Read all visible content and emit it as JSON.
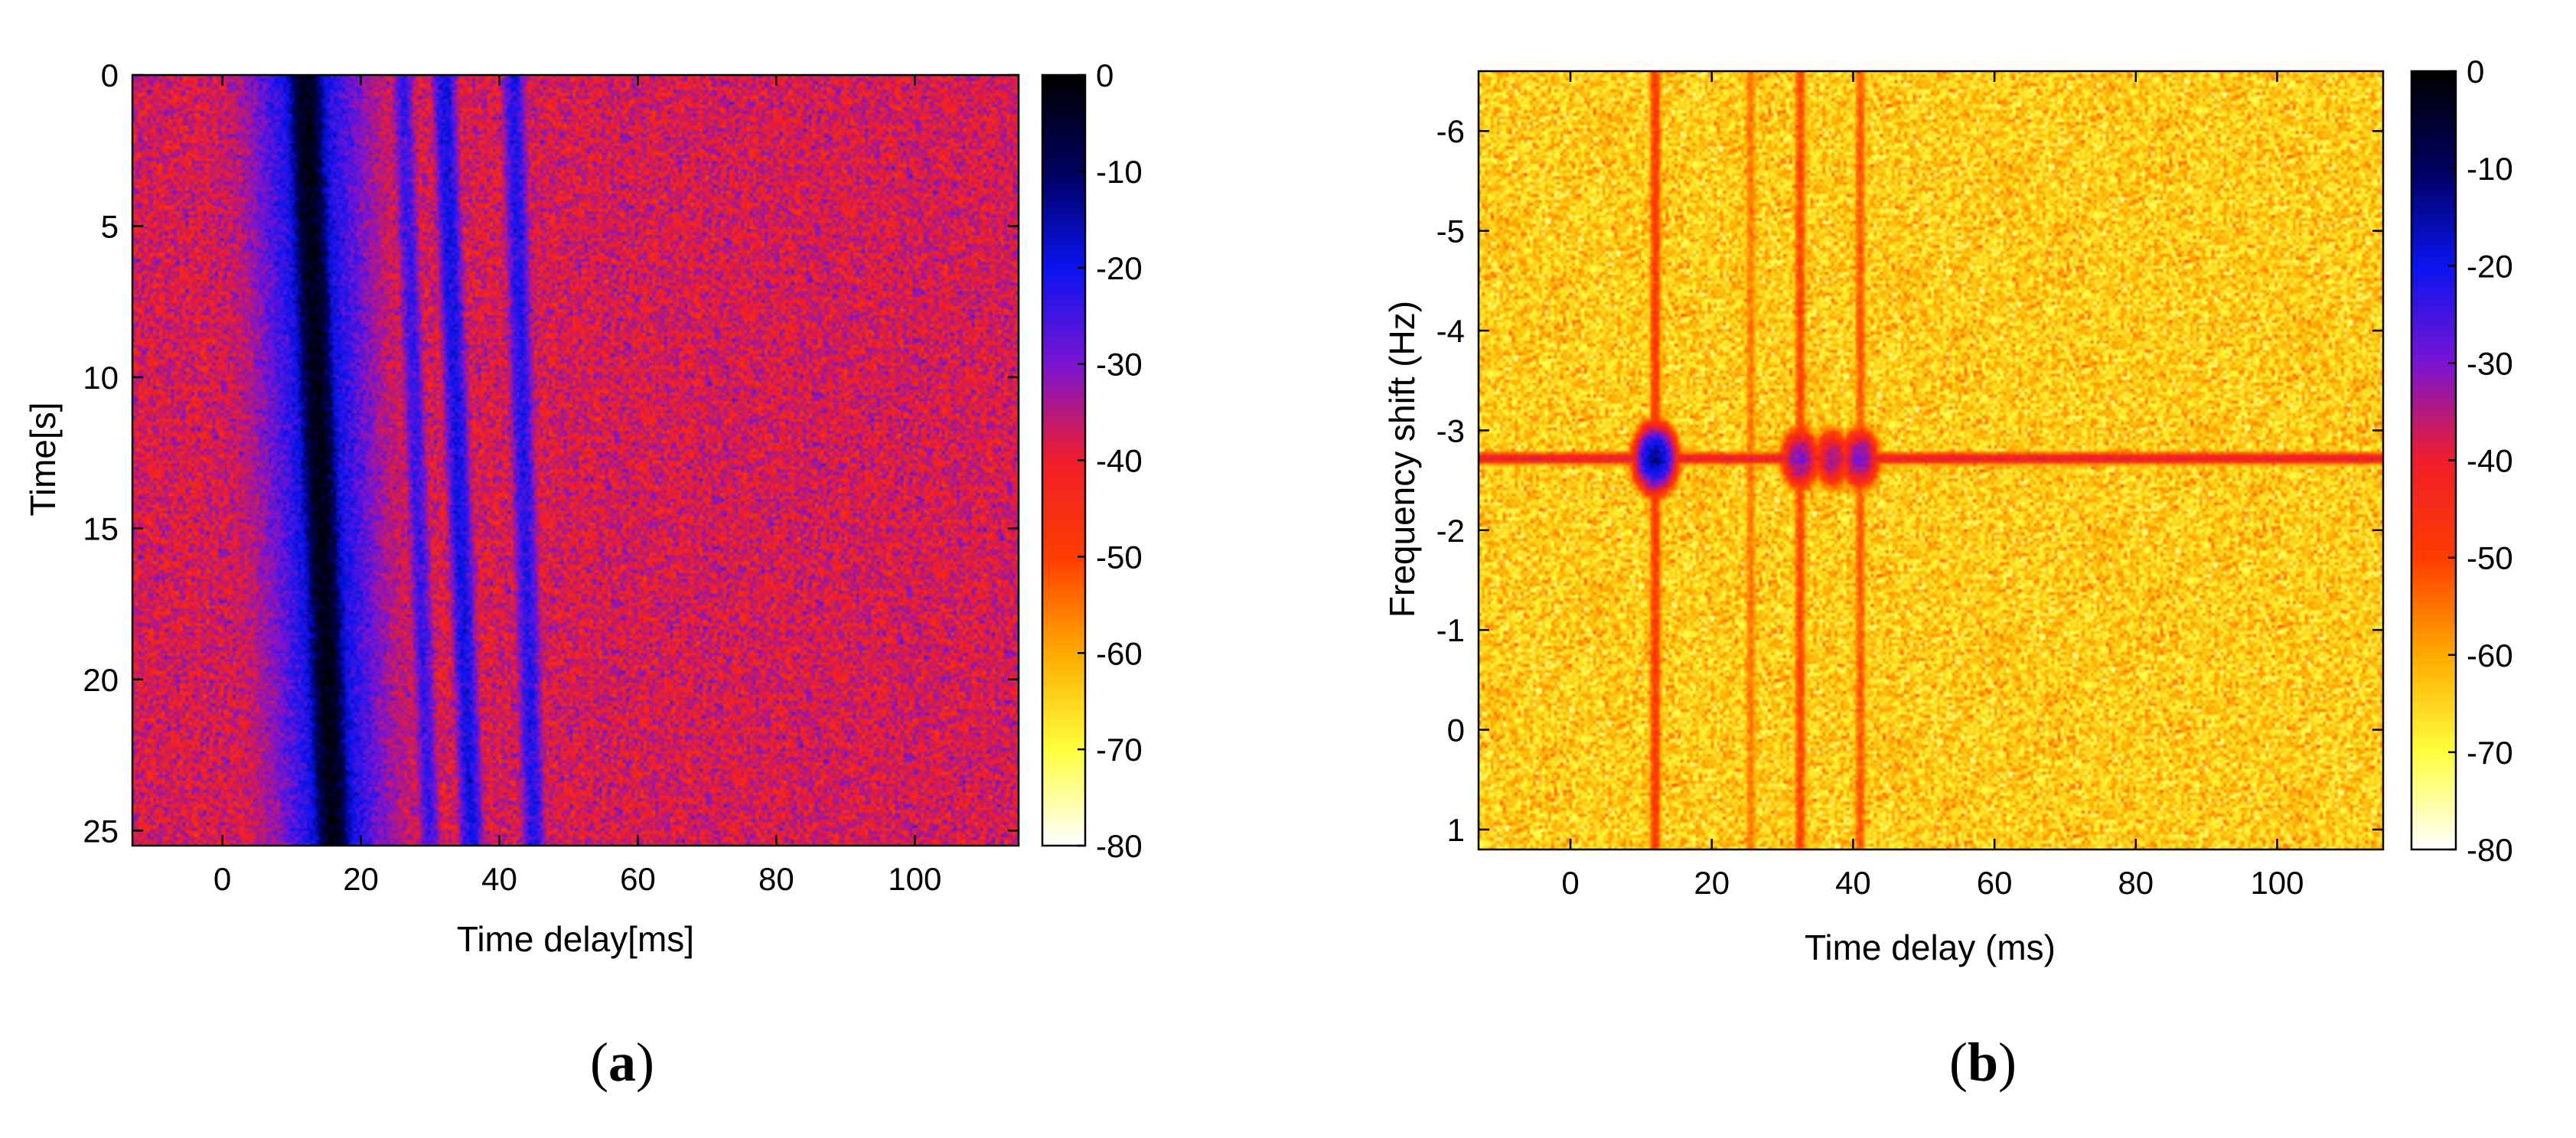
{
  "panels": [
    {
      "id": "a",
      "caption_open": "(",
      "caption_letter": "a",
      "caption_close": ")"
    },
    {
      "id": "b",
      "caption_open": "(",
      "caption_letter": "b",
      "caption_close": ")"
    }
  ],
  "chart_data": [
    {
      "type": "heatmap",
      "title": "",
      "xlabel": "Time delay[ms]",
      "ylabel": "Time[s]",
      "xlim": [
        -13,
        115
      ],
      "ylim": [
        0,
        25.5
      ],
      "y_reversed": true,
      "x_ticks": [
        "0",
        "20",
        "40",
        "60",
        "80",
        "100"
      ],
      "y_ticks": [
        "0",
        "5",
        "10",
        "15",
        "20",
        "25"
      ],
      "colorbar": {
        "range": [
          -80,
          0
        ],
        "ticks": [
          "0",
          "-10",
          "-20",
          "-30",
          "-40",
          "-50",
          "-60",
          "-70",
          "-80"
        ],
        "colormap": [
          "#ffffff",
          "#ffff3c",
          "#ffaa00",
          "#ff3c00",
          "#f01e2a",
          "#7a14d2",
          "#0a14f0",
          "#000060",
          "#000000"
        ]
      },
      "background_level_db": -38,
      "features": [
        {
          "kind": "direct-path-streak",
          "x_start": 12,
          "x_end": 16,
          "level_db": -2,
          "width_ms": 1.8
        },
        {
          "kind": "multipath-streak",
          "x_start": 26,
          "x_end": 30,
          "level_db": -24,
          "width_ms": 1.2
        },
        {
          "kind": "multipath-streak",
          "x_start": 32,
          "x_end": 36,
          "level_db": -20,
          "width_ms": 1.3
        },
        {
          "kind": "multipath-streak",
          "x_start": 42,
          "x_end": 45,
          "level_db": -22,
          "width_ms": 1.3
        }
      ]
    },
    {
      "type": "heatmap",
      "title": "",
      "xlabel": "Time delay (ms)",
      "ylabel": "Frequency shift (Hz)",
      "xlim": [
        -13,
        115
      ],
      "ylim": [
        -6.6,
        1.2
      ],
      "y_reversed": true,
      "x_ticks": [
        "0",
        "20",
        "40",
        "60",
        "80",
        "100"
      ],
      "y_ticks": [
        "-6",
        "-5",
        "-4",
        "-3",
        "-2",
        "-1",
        "0",
        "1"
      ],
      "colorbar": {
        "range": [
          -80,
          0
        ],
        "ticks": [
          "0",
          "-10",
          "-20",
          "-30",
          "-40",
          "-50",
          "-60",
          "-70",
          "-80"
        ],
        "colormap": [
          "#ffffff",
          "#ffff3c",
          "#ffaa00",
          "#ff3c00",
          "#f01e2a",
          "#7a14d2",
          "#0a14f0",
          "#000060",
          "#000000"
        ]
      },
      "background_level_db": -64,
      "features": [
        {
          "kind": "delay-line",
          "x": 12,
          "level_db": -48
        },
        {
          "kind": "delay-line",
          "x": 25.5,
          "level_db": -55
        },
        {
          "kind": "delay-line",
          "x": 32.5,
          "level_db": -50
        },
        {
          "kind": "delay-line",
          "x": 41,
          "level_db": -52
        },
        {
          "kind": "doppler-line",
          "y": -2.72,
          "level_db": -40
        },
        {
          "kind": "peak",
          "x": 12,
          "y": -2.72,
          "level_db": -14
        },
        {
          "kind": "peak",
          "x": 32.5,
          "y": -2.72,
          "level_db": -30
        },
        {
          "kind": "peak",
          "x": 37,
          "y": -2.72,
          "level_db": -34
        },
        {
          "kind": "peak",
          "x": 41,
          "y": -2.72,
          "level_db": -30
        }
      ]
    }
  ]
}
